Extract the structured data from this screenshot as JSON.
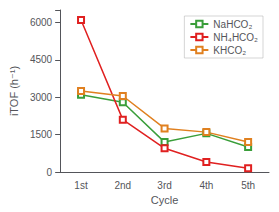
{
  "chart_data": {
    "type": "line",
    "categories": [
      "1st",
      "2nd",
      "3rd",
      "4th",
      "5th"
    ],
    "series": [
      {
        "name": "NaHCO₂",
        "color": "#3a9e3a",
        "values": [
          3100,
          2800,
          1200,
          1550,
          1000
        ]
      },
      {
        "name": "NH₄HCO₂",
        "color": "#e02020",
        "values": [
          6100,
          2100,
          950,
          400,
          150
        ]
      },
      {
        "name": "KHCO₂",
        "color": "#e08020",
        "values": [
          3250,
          3050,
          1750,
          1600,
          1200
        ]
      }
    ],
    "xlabel": "Cycle",
    "ylabel": "iTOF (h⁻¹)",
    "ylim": [
      0,
      6500
    ],
    "yticks": [
      0,
      1500,
      3000,
      4500,
      6000
    ],
    "grid": false,
    "legend": "upper right",
    "marker": "square"
  }
}
